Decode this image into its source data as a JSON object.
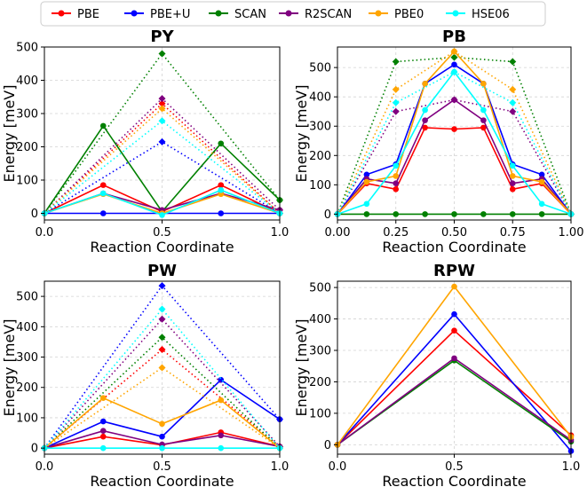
{
  "legend": [
    {
      "name": "PBE",
      "color": "#ff0000"
    },
    {
      "name": "PBE+U",
      "color": "#0000ff"
    },
    {
      "name": "SCAN",
      "color": "#008000"
    },
    {
      "name": "R2SCAN",
      "color": "#800080"
    },
    {
      "name": "PBE0",
      "color": "#ffa500"
    },
    {
      "name": "HSE06",
      "color": "#00ffff"
    }
  ],
  "chart_data": [
    {
      "type": "line",
      "title": "PY",
      "xlabel": "Reaction Coordinate",
      "ylabel": "Energy [meV]",
      "xlim": [
        0,
        1
      ],
      "ylim": [
        -20,
        500
      ],
      "xticks": [
        0.0,
        0.5,
        1.0
      ],
      "xtick_labels": [
        "0.0",
        "0.5",
        "1.0"
      ],
      "yticks": [
        0,
        100,
        200,
        300,
        400,
        500
      ],
      "ytick_labels": [
        "0",
        "100",
        "200",
        "300",
        "400",
        "500"
      ],
      "series": [
        {
          "name": "PBE",
          "color": "#ff0000",
          "style": "solid",
          "x": [
            0,
            0.25,
            0.5,
            0.75,
            1.0
          ],
          "y": [
            0,
            85,
            5,
            85,
            0
          ]
        },
        {
          "name": "PBE",
          "color": "#ff0000",
          "style": "dotted",
          "x": [
            0,
            0.5,
            1.0
          ],
          "y": [
            0,
            330,
            0
          ]
        },
        {
          "name": "PBE+U",
          "color": "#0000ff",
          "style": "solid",
          "x": [
            0,
            0.25,
            0.5,
            0.75,
            1.0
          ],
          "y": [
            0,
            0,
            0,
            0,
            0
          ]
        },
        {
          "name": "PBE+U",
          "color": "#0000ff",
          "style": "dotted",
          "x": [
            0,
            0.5,
            1.0
          ],
          "y": [
            0,
            215,
            0
          ]
        },
        {
          "name": "SCAN",
          "color": "#008000",
          "style": "solid",
          "x": [
            0,
            0.25,
            0.5,
            0.75,
            1.0
          ],
          "y": [
            0,
            263,
            5,
            210,
            40
          ]
        },
        {
          "name": "SCAN",
          "color": "#008000",
          "style": "dotted",
          "x": [
            0,
            0.5,
            1.0
          ],
          "y": [
            0,
            480,
            40
          ]
        },
        {
          "name": "R2SCAN",
          "color": "#800080",
          "style": "solid",
          "x": [
            0,
            0.25,
            0.5,
            0.75,
            1.0
          ],
          "y": [
            0,
            60,
            10,
            60,
            10
          ]
        },
        {
          "name": "R2SCAN",
          "color": "#800080",
          "style": "dotted",
          "x": [
            0,
            0.5,
            1.0
          ],
          "y": [
            0,
            345,
            10
          ]
        },
        {
          "name": "PBE0",
          "color": "#ffa500",
          "style": "solid",
          "x": [
            0,
            0.25,
            0.5,
            0.75,
            1.0
          ],
          "y": [
            0,
            58,
            0,
            58,
            0
          ]
        },
        {
          "name": "PBE0",
          "color": "#ffa500",
          "style": "dotted",
          "x": [
            0,
            0.5,
            1.0
          ],
          "y": [
            0,
            315,
            0
          ]
        },
        {
          "name": "HSE06",
          "color": "#00ffff",
          "style": "solid",
          "x": [
            0,
            0.25,
            0.5,
            0.75,
            1.0
          ],
          "y": [
            0,
            60,
            -5,
            70,
            0
          ]
        },
        {
          "name": "HSE06",
          "color": "#00ffff",
          "style": "dotted",
          "x": [
            0,
            0.5,
            1.0
          ],
          "y": [
            0,
            278,
            0
          ]
        }
      ]
    },
    {
      "type": "line",
      "title": "PB",
      "xlabel": "Reaction Coordinate",
      "ylabel": "Energy [meV]",
      "xlim": [
        0,
        1
      ],
      "ylim": [
        -20,
        570
      ],
      "xticks": [
        0.0,
        0.25,
        0.5,
        0.75,
        1.0
      ],
      "xtick_labels": [
        "0.00",
        "0.25",
        "0.50",
        "0.75",
        "1.00"
      ],
      "yticks": [
        0,
        100,
        200,
        300,
        400,
        500
      ],
      "ytick_labels": [
        "0",
        "100",
        "200",
        "300",
        "400",
        "500"
      ],
      "series": [
        {
          "name": "PBE",
          "color": "#ff0000",
          "style": "solid",
          "x": [
            0,
            0.125,
            0.25,
            0.375,
            0.5,
            0.625,
            0.75,
            0.875,
            1.0
          ],
          "y": [
            0,
            105,
            85,
            295,
            290,
            295,
            85,
            105,
            0
          ]
        },
        {
          "name": "PBE+U",
          "color": "#0000ff",
          "style": "solid",
          "x": [
            0,
            0.125,
            0.25,
            0.375,
            0.5,
            0.625,
            0.75,
            0.875,
            1.0
          ],
          "y": [
            0,
            135,
            170,
            445,
            510,
            445,
            170,
            135,
            0
          ]
        },
        {
          "name": "SCAN",
          "color": "#008000",
          "style": "solid",
          "x": [
            0,
            0.125,
            0.25,
            0.375,
            0.5,
            0.625,
            0.75,
            0.875,
            1.0
          ],
          "y": [
            0,
            0,
            0,
            0,
            0,
            0,
            0,
            0,
            0
          ]
        },
        {
          "name": "SCAN",
          "color": "#008000",
          "style": "dotted",
          "x": [
            0,
            0.25,
            0.5,
            0.75,
            1.0
          ],
          "y": [
            0,
            520,
            535,
            520,
            0
          ]
        },
        {
          "name": "R2SCAN",
          "color": "#800080",
          "style": "solid",
          "x": [
            0,
            0.125,
            0.25,
            0.375,
            0.5,
            0.625,
            0.75,
            0.875,
            1.0
          ],
          "y": [
            0,
            120,
            105,
            320,
            390,
            320,
            105,
            120,
            0
          ]
        },
        {
          "name": "R2SCAN",
          "color": "#800080",
          "style": "dotted",
          "x": [
            0,
            0.25,
            0.5,
            0.75,
            1.0
          ],
          "y": [
            0,
            350,
            390,
            350,
            0
          ]
        },
        {
          "name": "PBE0",
          "color": "#ffa500",
          "style": "solid",
          "x": [
            0,
            0.125,
            0.25,
            0.375,
            0.5,
            0.625,
            0.75,
            0.875,
            1.0
          ],
          "y": [
            0,
            110,
            130,
            445,
            555,
            445,
            130,
            110,
            0
          ]
        },
        {
          "name": "PBE0",
          "color": "#ffa500",
          "style": "dotted",
          "x": [
            0,
            0.25,
            0.5,
            0.75,
            1.0
          ],
          "y": [
            0,
            425,
            555,
            425,
            0
          ]
        },
        {
          "name": "HSE06",
          "color": "#00ffff",
          "style": "solid",
          "x": [
            0,
            0.125,
            0.25,
            0.375,
            0.5,
            0.625,
            0.75,
            0.875,
            1.0
          ],
          "y": [
            0,
            35,
            165,
            355,
            485,
            355,
            165,
            35,
            0
          ]
        },
        {
          "name": "HSE06",
          "color": "#00ffff",
          "style": "dotted",
          "x": [
            0,
            0.25,
            0.5,
            0.75,
            1.0
          ],
          "y": [
            0,
            380,
            485,
            380,
            0
          ]
        }
      ]
    },
    {
      "type": "line",
      "title": "PW",
      "xlabel": "Reaction Coordinate",
      "ylabel": "Energy [meV]",
      "xlim": [
        0,
        1
      ],
      "ylim": [
        -20,
        550
      ],
      "xticks": [
        0.0,
        0.5,
        1.0
      ],
      "xtick_labels": [
        "0.0",
        "0.5",
        "1.0"
      ],
      "yticks": [
        0,
        100,
        200,
        300,
        400,
        500
      ],
      "ytick_labels": [
        "0",
        "100",
        "200",
        "300",
        "400",
        "500"
      ],
      "series": [
        {
          "name": "PBE",
          "color": "#ff0000",
          "style": "solid",
          "x": [
            0,
            0.25,
            0.5,
            0.75,
            1.0
          ],
          "y": [
            0,
            38,
            10,
            52,
            5
          ]
        },
        {
          "name": "PBE",
          "color": "#ff0000",
          "style": "dotted",
          "x": [
            0,
            0.5,
            1.0
          ],
          "y": [
            0,
            325,
            5
          ]
        },
        {
          "name": "PBE+U",
          "color": "#0000ff",
          "style": "solid",
          "x": [
            0,
            0.25,
            0.5,
            0.75,
            1.0
          ],
          "y": [
            0,
            88,
            38,
            225,
            95
          ]
        },
        {
          "name": "PBE+U",
          "color": "#0000ff",
          "style": "dotted",
          "x": [
            0,
            0.5,
            1.0
          ],
          "y": [
            0,
            535,
            95
          ]
        },
        {
          "name": "SCAN",
          "color": "#008000",
          "style": "dotted",
          "x": [
            0,
            0.5,
            1.0
          ],
          "y": [
            0,
            365,
            0
          ]
        },
        {
          "name": "R2SCAN",
          "color": "#800080",
          "style": "solid",
          "x": [
            0,
            0.25,
            0.5,
            0.75,
            1.0
          ],
          "y": [
            0,
            57,
            12,
            42,
            5
          ]
        },
        {
          "name": "R2SCAN",
          "color": "#800080",
          "style": "dotted",
          "x": [
            0,
            0.5,
            1.0
          ],
          "y": [
            0,
            425,
            5
          ]
        },
        {
          "name": "PBE0",
          "color": "#ffa500",
          "style": "solid",
          "x": [
            0,
            0.25,
            0.5,
            0.75,
            1.0
          ],
          "y": [
            0,
            165,
            80,
            158,
            0
          ]
        },
        {
          "name": "PBE0",
          "color": "#ffa500",
          "style": "dotted",
          "x": [
            0,
            0.5,
            1.0
          ],
          "y": [
            0,
            265,
            0
          ]
        },
        {
          "name": "HSE06",
          "color": "#00ffff",
          "style": "solid",
          "x": [
            0,
            0.25,
            0.5,
            0.75,
            1.0
          ],
          "y": [
            0,
            0,
            0,
            0,
            0
          ]
        },
        {
          "name": "HSE06",
          "color": "#00ffff",
          "style": "dotted",
          "x": [
            0,
            0.5,
            1.0
          ],
          "y": [
            0,
            458,
            0
          ]
        }
      ]
    },
    {
      "type": "line",
      "title": "RPW",
      "xlabel": "Reaction Coordinate",
      "ylabel": "Energy [meV]",
      "xlim": [
        0,
        1
      ],
      "ylim": [
        -30,
        520
      ],
      "xticks": [
        0.0,
        0.5,
        1.0
      ],
      "xtick_labels": [
        "0.0",
        "0.5",
        "1.0"
      ],
      "yticks": [
        0,
        100,
        200,
        300,
        400,
        500
      ],
      "ytick_labels": [
        "0",
        "100",
        "200",
        "300",
        "400",
        "500"
      ],
      "series": [
        {
          "name": "PBE",
          "color": "#ff0000",
          "style": "solid",
          "x": [
            0,
            0.5,
            1.0
          ],
          "y": [
            0,
            363,
            30
          ]
        },
        {
          "name": "PBE+U",
          "color": "#0000ff",
          "style": "solid",
          "x": [
            0,
            0.5,
            1.0
          ],
          "y": [
            0,
            415,
            -20
          ]
        },
        {
          "name": "SCAN",
          "color": "#008000",
          "style": "solid",
          "x": [
            0,
            0.5,
            1.0
          ],
          "y": [
            0,
            268,
            10
          ]
        },
        {
          "name": "R2SCAN",
          "color": "#800080",
          "style": "solid",
          "x": [
            0,
            0.5,
            1.0
          ],
          "y": [
            0,
            275,
            15
          ]
        },
        {
          "name": "PBE0",
          "color": "#ffa500",
          "style": "solid",
          "x": [
            0,
            0.5,
            1.0
          ],
          "y": [
            0,
            503,
            25
          ]
        }
      ]
    }
  ]
}
